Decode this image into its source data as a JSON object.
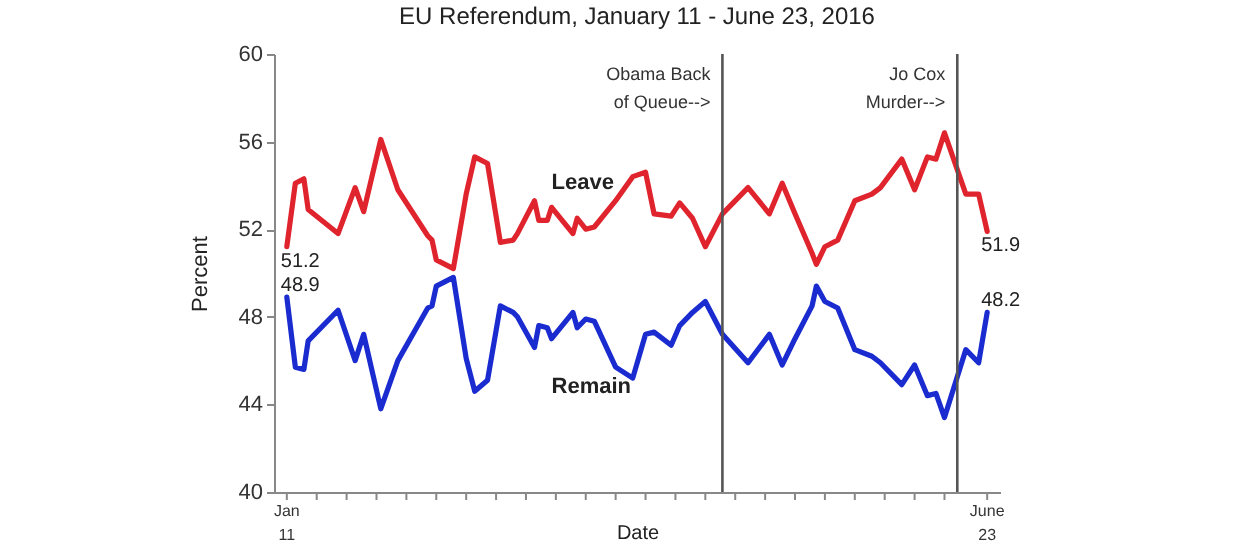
{
  "chart_data": {
    "type": "line",
    "title": "EU Referendum, January 11 - June 23, 2016",
    "xlabel": "Date",
    "ylabel": "Percent",
    "ylim": [
      40,
      60
    ],
    "yticks": [
      40,
      44,
      48,
      52,
      56,
      60
    ],
    "xlim": [
      "2016-01-08",
      "2016-06-26"
    ],
    "xticks": [
      {
        "value": "2016-01-11",
        "label": "Jan\n11"
      },
      {
        "value": "2016-01-18",
        "label": null
      },
      {
        "value": "2016-01-25",
        "label": null
      },
      {
        "value": "2016-02-01",
        "label": null
      },
      {
        "value": "2016-02-08",
        "label": null
      },
      {
        "value": "2016-02-15",
        "label": null
      },
      {
        "value": "2016-02-22",
        "label": null
      },
      {
        "value": "2016-02-29",
        "label": null
      },
      {
        "value": "2016-03-07",
        "label": null
      },
      {
        "value": "2016-03-14",
        "label": null
      },
      {
        "value": "2016-03-21",
        "label": null
      },
      {
        "value": "2016-03-28",
        "label": null
      },
      {
        "value": "2016-04-04",
        "label": null
      },
      {
        "value": "2016-04-11",
        "label": null
      },
      {
        "value": "2016-04-18",
        "label": null
      },
      {
        "value": "2016-04-25",
        "label": null
      },
      {
        "value": "2016-05-02",
        "label": null
      },
      {
        "value": "2016-05-09",
        "label": null
      },
      {
        "value": "2016-05-16",
        "label": null
      },
      {
        "value": "2016-05-23",
        "label": null
      },
      {
        "value": "2016-05-30",
        "label": null
      },
      {
        "value": "2016-06-06",
        "label": null
      },
      {
        "value": "2016-06-13",
        "label": null
      },
      {
        "value": "2016-06-23",
        "label": "June\n23"
      }
    ],
    "x": [
      "2016-01-11",
      "2016-01-13",
      "2016-01-15",
      "2016-01-16",
      "2016-01-23",
      "2016-01-27",
      "2016-01-29",
      "2016-02-02",
      "2016-02-06",
      "2016-02-13",
      "2016-02-14",
      "2016-02-15",
      "2016-02-19",
      "2016-02-22",
      "2016-02-24",
      "2016-02-27",
      "2016-03-01",
      "2016-03-04",
      "2016-03-05",
      "2016-03-09",
      "2016-03-10",
      "2016-03-12",
      "2016-03-13",
      "2016-03-18",
      "2016-03-19",
      "2016-03-21",
      "2016-03-23",
      "2016-03-28",
      "2016-04-01",
      "2016-04-04",
      "2016-04-06",
      "2016-04-10",
      "2016-04-12",
      "2016-04-15",
      "2016-04-18",
      "2016-04-22",
      "2016-04-28",
      "2016-05-03",
      "2016-05-06",
      "2016-05-09",
      "2016-05-13",
      "2016-05-14",
      "2016-05-16",
      "2016-05-19",
      "2016-05-23",
      "2016-05-27",
      "2016-05-29",
      "2016-06-03",
      "2016-06-06",
      "2016-06-09",
      "2016-06-11",
      "2016-06-13",
      "2016-06-18",
      "2016-06-21",
      "2016-06-23"
    ],
    "series": [
      {
        "name": "Leave",
        "color": "#e0242e",
        "values": [
          51.2,
          54.1,
          54.3,
          52.9,
          51.8,
          53.9,
          52.8,
          56.1,
          53.8,
          51.7,
          51.5,
          50.6,
          50.2,
          53.6,
          55.3,
          55.0,
          51.4,
          51.5,
          51.8,
          53.3,
          52.4,
          52.4,
          53.0,
          51.8,
          52.5,
          52.0,
          52.1,
          53.3,
          54.4,
          54.6,
          52.7,
          52.6,
          53.2,
          52.5,
          51.2,
          52.7,
          53.9,
          52.7,
          54.1,
          52.7,
          50.9,
          50.4,
          51.2,
          51.5,
          53.3,
          53.6,
          53.9,
          55.2,
          53.8,
          55.3,
          55.2,
          56.4,
          53.6,
          53.6,
          51.9
        ],
        "value_labels": [
          "51.2",
          null,
          null,
          null,
          null,
          null,
          null,
          null,
          null,
          null,
          null,
          null,
          null,
          null,
          null,
          null,
          null,
          null,
          null,
          null,
          null,
          null,
          null,
          null,
          null,
          null,
          null,
          null,
          null,
          null,
          null,
          null,
          null,
          null,
          null,
          null,
          null,
          null,
          null,
          null,
          null,
          null,
          null,
          null,
          null,
          null,
          null,
          null,
          null,
          null,
          null,
          null,
          null,
          null,
          "51.9"
        ]
      },
      {
        "name": "Remain",
        "color": "#1a2bd0",
        "values": [
          48.9,
          45.7,
          45.6,
          46.9,
          48.3,
          46.0,
          47.2,
          43.8,
          46.0,
          48.4,
          48.5,
          49.4,
          49.8,
          46.1,
          44.6,
          45.1,
          48.5,
          48.2,
          48.0,
          46.6,
          47.6,
          47.5,
          47.0,
          48.2,
          47.5,
          47.9,
          47.8,
          45.7,
          45.2,
          47.2,
          47.3,
          46.7,
          47.6,
          48.2,
          48.7,
          47.2,
          45.9,
          47.2,
          45.8,
          47.0,
          48.5,
          49.4,
          48.7,
          48.4,
          46.5,
          46.2,
          45.9,
          44.9,
          45.8,
          44.4,
          44.5,
          43.4,
          46.5,
          45.9,
          48.2
        ],
        "value_labels": [
          "48.9",
          null,
          null,
          null,
          null,
          null,
          null,
          null,
          null,
          null,
          null,
          null,
          null,
          null,
          null,
          null,
          null,
          null,
          null,
          null,
          null,
          null,
          null,
          null,
          null,
          null,
          null,
          null,
          null,
          null,
          null,
          null,
          null,
          null,
          null,
          null,
          null,
          null,
          null,
          null,
          null,
          null,
          null,
          null,
          null,
          null,
          null,
          null,
          null,
          null,
          null,
          null,
          null,
          null,
          "48.2"
        ]
      }
    ],
    "ref_lines": [
      {
        "axis": "x",
        "value": "2016-04-22",
        "label": "Obama Back\nof Queue-->",
        "color": "#555555"
      },
      {
        "axis": "x",
        "value": "2016-06-16",
        "label": "Jo Cox\nMurder-->",
        "color": "#555555"
      }
    ],
    "grid": false,
    "legend": false,
    "marker": "none",
    "line_style": "solid"
  }
}
